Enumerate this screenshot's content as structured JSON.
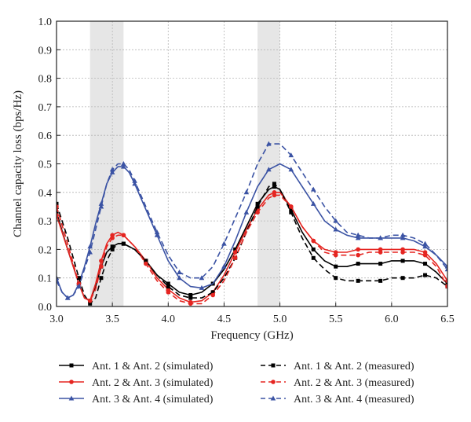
{
  "chart_data": {
    "type": "line",
    "xlabel": "Frequency (GHz)",
    "ylabel": "Channel capacity loss (bps/Hz)",
    "xlim": [
      3.0,
      6.5
    ],
    "ylim": [
      0.0,
      1.0
    ],
    "xticks": [
      "3.0",
      "3.5",
      "4.0",
      "4.5",
      "5.0",
      "5.5",
      "6.0",
      "6.5"
    ],
    "yticks": [
      "0.0",
      "0.1",
      "0.2",
      "0.3",
      "0.4",
      "0.5",
      "0.6",
      "0.7",
      "0.8",
      "0.9",
      "1.0"
    ],
    "grid": true,
    "shaded_bands": [
      [
        3.3,
        3.6
      ],
      [
        4.8,
        5.0
      ]
    ],
    "legend_position": "bottom",
    "series": [
      {
        "name": "Ant. 1 & Ant. 2 (simulated)",
        "color": "#000000",
        "dash": "solid",
        "marker": "square",
        "x": [
          3.0,
          3.1,
          3.2,
          3.25,
          3.3,
          3.35,
          3.4,
          3.45,
          3.5,
          3.55,
          3.6,
          3.7,
          3.8,
          3.9,
          4.0,
          4.1,
          4.2,
          4.3,
          4.4,
          4.5,
          4.6,
          4.7,
          4.8,
          4.9,
          4.95,
          5.0,
          5.1,
          5.2,
          5.3,
          5.4,
          5.5,
          5.6,
          5.7,
          5.8,
          5.9,
          6.0,
          6.1,
          6.2,
          6.3,
          6.4,
          6.5
        ],
        "y": [
          0.33,
          0.2,
          0.08,
          0.03,
          0.02,
          0.07,
          0.14,
          0.19,
          0.21,
          0.22,
          0.22,
          0.2,
          0.16,
          0.11,
          0.08,
          0.05,
          0.04,
          0.05,
          0.08,
          0.13,
          0.2,
          0.28,
          0.36,
          0.41,
          0.42,
          0.41,
          0.34,
          0.26,
          0.2,
          0.16,
          0.14,
          0.14,
          0.15,
          0.15,
          0.15,
          0.16,
          0.16,
          0.16,
          0.15,
          0.12,
          0.08
        ]
      },
      {
        "name": "Ant. 2 & Ant. 3 (simulated)",
        "color": "#e52521",
        "dash": "solid",
        "marker": "circle",
        "x": [
          3.0,
          3.1,
          3.2,
          3.25,
          3.3,
          3.35,
          3.4,
          3.45,
          3.5,
          3.55,
          3.6,
          3.7,
          3.8,
          3.9,
          4.0,
          4.1,
          4.2,
          4.3,
          4.4,
          4.5,
          4.6,
          4.7,
          4.8,
          4.9,
          4.95,
          5.0,
          5.1,
          5.2,
          5.3,
          5.4,
          5.5,
          5.6,
          5.7,
          5.8,
          5.9,
          6.0,
          6.1,
          6.2,
          6.3,
          6.4,
          6.5
        ],
        "y": [
          0.32,
          0.2,
          0.08,
          0.03,
          0.02,
          0.08,
          0.16,
          0.22,
          0.25,
          0.26,
          0.25,
          0.21,
          0.16,
          0.1,
          0.06,
          0.03,
          0.015,
          0.02,
          0.05,
          0.11,
          0.19,
          0.27,
          0.34,
          0.39,
          0.4,
          0.4,
          0.35,
          0.28,
          0.23,
          0.2,
          0.19,
          0.19,
          0.2,
          0.2,
          0.2,
          0.2,
          0.2,
          0.2,
          0.19,
          0.15,
          0.09
        ]
      },
      {
        "name": "Ant. 3 & Ant. 4 (simulated)",
        "color": "#3b53a4",
        "dash": "solid",
        "marker": "triangle",
        "x": [
          3.0,
          3.05,
          3.1,
          3.15,
          3.2,
          3.25,
          3.3,
          3.35,
          3.4,
          3.45,
          3.5,
          3.55,
          3.6,
          3.65,
          3.7,
          3.8,
          3.9,
          4.0,
          4.1,
          4.2,
          4.3,
          4.4,
          4.5,
          4.6,
          4.7,
          4.8,
          4.9,
          5.0,
          5.1,
          5.2,
          5.3,
          5.4,
          5.5,
          5.6,
          5.7,
          5.8,
          5.9,
          6.0,
          6.1,
          6.2,
          6.3,
          6.4,
          6.5
        ],
        "y": [
          0.1,
          0.05,
          0.03,
          0.04,
          0.08,
          0.14,
          0.21,
          0.29,
          0.36,
          0.43,
          0.47,
          0.49,
          0.49,
          0.47,
          0.43,
          0.34,
          0.25,
          0.16,
          0.1,
          0.07,
          0.065,
          0.08,
          0.14,
          0.23,
          0.33,
          0.42,
          0.48,
          0.5,
          0.48,
          0.42,
          0.36,
          0.3,
          0.27,
          0.25,
          0.24,
          0.24,
          0.24,
          0.24,
          0.24,
          0.23,
          0.21,
          0.18,
          0.14
        ]
      },
      {
        "name": "Ant. 1 & Ant. 2 (measured)",
        "color": "#000000",
        "dash": "dashed",
        "marker": "square",
        "x": [
          3.0,
          3.1,
          3.2,
          3.25,
          3.3,
          3.35,
          3.4,
          3.45,
          3.5,
          3.55,
          3.6,
          3.7,
          3.8,
          3.9,
          4.0,
          4.1,
          4.2,
          4.3,
          4.4,
          4.5,
          4.6,
          4.7,
          4.8,
          4.9,
          4.95,
          5.0,
          5.1,
          5.2,
          5.3,
          5.4,
          5.5,
          5.6,
          5.7,
          5.8,
          5.9,
          6.0,
          6.1,
          6.2,
          6.3,
          6.4,
          6.5
        ],
        "y": [
          0.36,
          0.24,
          0.1,
          0.04,
          0.01,
          0.03,
          0.1,
          0.16,
          0.2,
          0.22,
          0.22,
          0.2,
          0.16,
          0.11,
          0.07,
          0.04,
          0.03,
          0.03,
          0.05,
          0.1,
          0.17,
          0.26,
          0.35,
          0.42,
          0.43,
          0.41,
          0.33,
          0.24,
          0.17,
          0.13,
          0.1,
          0.09,
          0.09,
          0.09,
          0.09,
          0.1,
          0.1,
          0.1,
          0.11,
          0.1,
          0.07
        ]
      },
      {
        "name": "Ant. 2 & Ant. 3 (measured)",
        "color": "#e52521",
        "dash": "dashed",
        "marker": "circle",
        "x": [
          3.0,
          3.1,
          3.2,
          3.25,
          3.3,
          3.35,
          3.4,
          3.45,
          3.5,
          3.55,
          3.6,
          3.7,
          3.8,
          3.9,
          4.0,
          4.1,
          4.2,
          4.3,
          4.4,
          4.5,
          4.6,
          4.7,
          4.8,
          4.9,
          4.95,
          5.0,
          5.1,
          5.2,
          5.3,
          5.4,
          5.5,
          5.6,
          5.7,
          5.8,
          5.9,
          6.0,
          6.1,
          6.2,
          6.3,
          6.4,
          6.5
        ],
        "y": [
          0.35,
          0.22,
          0.08,
          0.03,
          0.02,
          0.06,
          0.14,
          0.21,
          0.24,
          0.25,
          0.25,
          0.21,
          0.15,
          0.09,
          0.05,
          0.02,
          0.01,
          0.01,
          0.04,
          0.09,
          0.17,
          0.26,
          0.33,
          0.38,
          0.39,
          0.39,
          0.35,
          0.28,
          0.23,
          0.19,
          0.18,
          0.18,
          0.18,
          0.19,
          0.19,
          0.19,
          0.19,
          0.19,
          0.18,
          0.14,
          0.07
        ]
      },
      {
        "name": "Ant. 3 & Ant. 4 (measured)",
        "color": "#3b53a4",
        "dash": "dashed",
        "marker": "triangle",
        "x": [
          3.0,
          3.05,
          3.1,
          3.15,
          3.2,
          3.25,
          3.3,
          3.35,
          3.4,
          3.45,
          3.5,
          3.55,
          3.6,
          3.65,
          3.7,
          3.8,
          3.9,
          4.0,
          4.1,
          4.2,
          4.3,
          4.4,
          4.5,
          4.6,
          4.7,
          4.8,
          4.9,
          5.0,
          5.1,
          5.2,
          5.3,
          5.4,
          5.5,
          5.6,
          5.7,
          5.8,
          5.9,
          6.0,
          6.1,
          6.2,
          6.3,
          6.4,
          6.5
        ],
        "y": [
          0.09,
          0.05,
          0.03,
          0.04,
          0.07,
          0.13,
          0.19,
          0.27,
          0.35,
          0.43,
          0.48,
          0.5,
          0.5,
          0.48,
          0.44,
          0.35,
          0.26,
          0.18,
          0.12,
          0.1,
          0.1,
          0.14,
          0.22,
          0.31,
          0.4,
          0.5,
          0.57,
          0.57,
          0.53,
          0.47,
          0.41,
          0.35,
          0.3,
          0.26,
          0.25,
          0.24,
          0.24,
          0.25,
          0.25,
          0.24,
          0.22,
          0.18,
          0.13
        ]
      }
    ]
  }
}
